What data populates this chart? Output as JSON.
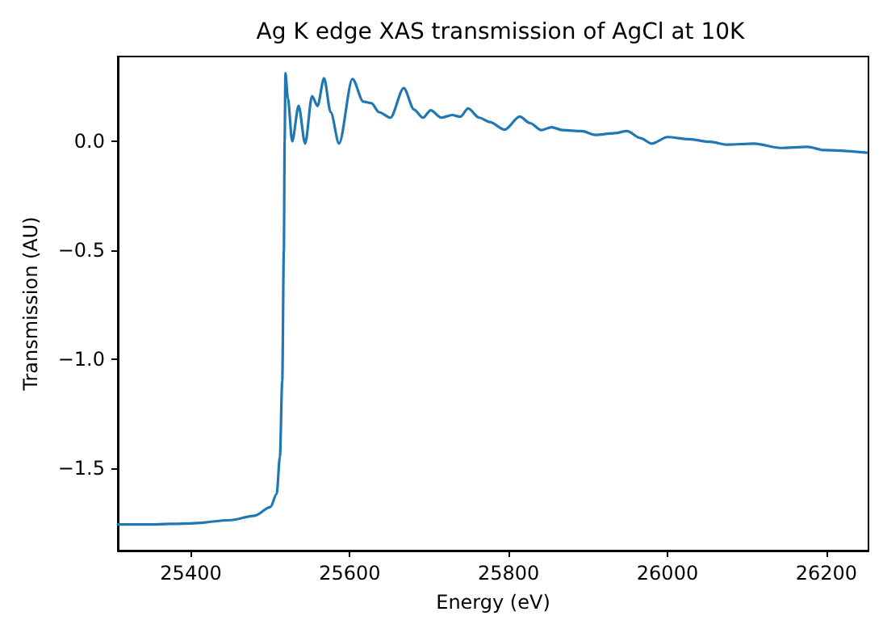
{
  "chart_data": {
    "type": "line",
    "title": "Ag K edge XAS transmission of AgCl at 10K",
    "xlabel": "Energy (eV)",
    "ylabel": "Transmission (AU)",
    "x": [
      25308,
      25350,
      25400,
      25450,
      25480,
      25500,
      25508,
      25512,
      25515,
      25517,
      25518,
      25519,
      25522,
      25527.5,
      25535.6,
      25543.8,
      25552.5,
      25559.4,
      25567.6,
      25576,
      25586.5,
      25603.4,
      25617,
      25627,
      25637,
      25651,
      25668,
      25681,
      25692,
      25702,
      25715,
      25729,
      25739,
      25749,
      25763,
      25776,
      25795,
      25814,
      25827,
      25841,
      25854,
      25868,
      25892,
      25909,
      25932,
      25949,
      25966,
      25980,
      26000,
      26027,
      26054,
      26075,
      26109,
      26142,
      26176,
      26197,
      26251
    ],
    "series": [
      {
        "color": "#1f77b4",
        "values": [
          -1.76,
          -1.76,
          -1.755,
          -1.74,
          -1.72,
          -1.68,
          -1.62,
          -1.45,
          -1.1,
          -0.5,
          0.0,
          0.314,
          0.2,
          0.0,
          0.163,
          -0.01,
          0.208,
          0.163,
          0.29,
          0.134,
          -0.01,
          0.287,
          0.183,
          0.176,
          0.134,
          0.109,
          0.245,
          0.146,
          0.109,
          0.143,
          0.109,
          0.121,
          0.113,
          0.151,
          0.109,
          0.089,
          0.054,
          0.114,
          0.084,
          0.052,
          0.065,
          0.052,
          0.047,
          0.03,
          0.037,
          0.047,
          0.015,
          -0.01,
          0.02,
          0.01,
          -0.002,
          -0.015,
          -0.01,
          -0.03,
          -0.025,
          -0.04,
          -0.052
        ]
      }
    ],
    "xlim": [
      25308,
      26253
    ],
    "xticks": [
      25400,
      25600,
      25800,
      26000,
      26200
    ],
    "ylim": [
      -1.88,
      0.39
    ],
    "yticks": [
      {
        "value": -1.5,
        "label": "−1.5"
      },
      {
        "value": -1.0,
        "label": "−1.0"
      },
      {
        "value": -0.5,
        "label": "−0.5"
      },
      {
        "value": 0,
        "label": "0.0"
      }
    ],
    "grid": false,
    "marker": "none",
    "line_style": "solid"
  }
}
